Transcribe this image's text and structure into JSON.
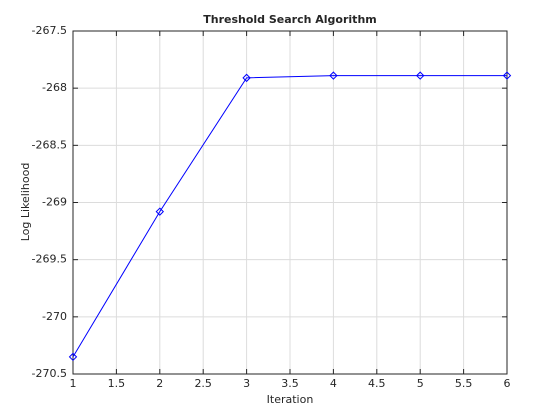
{
  "chart_data": {
    "type": "line",
    "title": "Threshold Search Algorithm",
    "x_label": "Iteration",
    "y_label": "Log Likelihood",
    "x": [
      1,
      2,
      3,
      4,
      5,
      6
    ],
    "values": [
      -270.35,
      -269.08,
      -267.91,
      -267.89,
      -267.89,
      -267.89
    ],
    "color": "#0000ff",
    "marker": "diamond",
    "xlim": [
      1,
      6
    ],
    "xticks": [
      1,
      1.5,
      2,
      2.5,
      3,
      3.5,
      4,
      4.5,
      5,
      5.5,
      6
    ],
    "ylim": [
      -270.5,
      -267.5
    ],
    "yticks": [
      -270.5,
      -270,
      -269.5,
      -269,
      -268.5,
      -268,
      -267.5
    ],
    "grid": true
  }
}
